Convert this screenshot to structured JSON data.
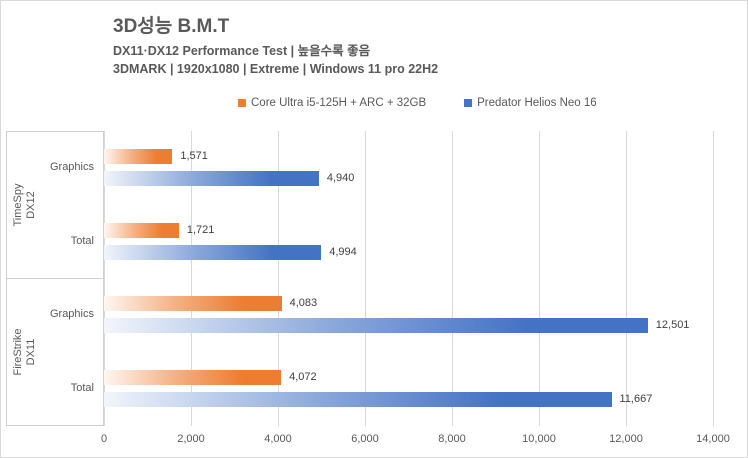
{
  "header": {
    "title": "3D성능 B.M.T",
    "subtitle1": "DX11·DX12 Performance Test | 높을수록 좋음",
    "subtitle2": "3DMARK | 1920x1080 | Extreme | Windows 11 pro 22H2"
  },
  "legend": [
    {
      "label": "Core Ultra i5-125H + ARC + 32GB",
      "color": "#ED7D31"
    },
    {
      "label": "Predator Helios Neo 16",
      "color": "#4472C4"
    }
  ],
  "chart_data": {
    "type": "bar",
    "orientation": "horizontal",
    "title": "3D성능 B.M.T",
    "groups": [
      {
        "label_lines": [
          "TimeSpy",
          "DX12"
        ],
        "categories": [
          "Graphics",
          "Total"
        ]
      },
      {
        "label_lines": [
          "FireStrike",
          "DX11"
        ],
        "categories": [
          "Graphics",
          "Total"
        ]
      }
    ],
    "categories": [
      "Graphics",
      "Total",
      "Graphics",
      "Total"
    ],
    "series": [
      {
        "name": "Core Ultra i5-125H + ARC + 32GB",
        "color": "#ED7D31",
        "values": [
          1571,
          1721,
          4083,
          4072
        ],
        "labels": [
          "1,571",
          "1,721",
          "4,083",
          "4,072"
        ]
      },
      {
        "name": "Predator Helios Neo 16",
        "color": "#4472C4",
        "values": [
          4940,
          4994,
          12501,
          11667
        ],
        "labels": [
          "4,940",
          "4,994",
          "12,501",
          "11,667"
        ]
      }
    ],
    "xlim": [
      0,
      14000
    ],
    "x_ticks": [
      0,
      2000,
      4000,
      6000,
      8000,
      10000,
      12000,
      14000
    ],
    "x_tick_labels": [
      "0",
      "2,000",
      "4,000",
      "6,000",
      "8,000",
      "10,000",
      "12,000",
      "14,000"
    ],
    "grid": true,
    "legend_position": "top-center",
    "colors": {
      "grid": "#D9D9D9",
      "axis_box": "#D0D0D0",
      "label_text": "#404040",
      "axis_text": "#595959"
    }
  }
}
